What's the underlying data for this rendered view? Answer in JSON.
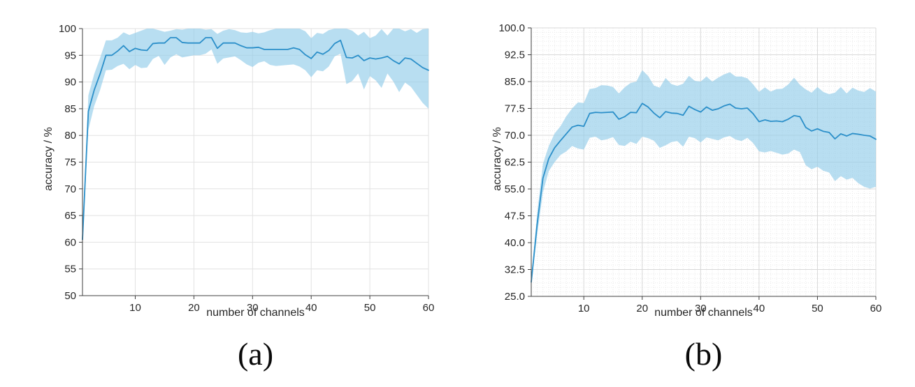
{
  "figure": {
    "background": "#ffffff",
    "description": "Two line charts with shaded confidence bands showing classification accuracy versus number of channels"
  },
  "chart_data": [
    {
      "id": "a",
      "type": "line",
      "caption": "(a)",
      "title": "",
      "xlabel": "number of channels",
      "ylabel": "accuracy / %",
      "xlim": [
        1,
        60
      ],
      "ylim": [
        50,
        100
      ],
      "xticks": [
        10,
        20,
        30,
        40,
        50,
        60
      ],
      "xtick_labels": [
        "10",
        "20",
        "30",
        "40",
        "50",
        "60"
      ],
      "yticks": [
        50,
        55,
        60,
        65,
        70,
        75,
        80,
        85,
        90,
        95,
        100
      ],
      "ytick_labels": [
        "50",
        "55",
        "60",
        "65",
        "70",
        "75",
        "80",
        "85",
        "90",
        "95",
        "100"
      ],
      "grid": {
        "major": true,
        "minor": false,
        "minor_x_step": 1,
        "minor_y_step": 1.25
      },
      "legend": "none",
      "x": [
        1,
        2,
        3,
        4,
        5,
        6,
        7,
        8,
        9,
        10,
        11,
        12,
        13,
        14,
        15,
        16,
        17,
        18,
        19,
        20,
        21,
        22,
        23,
        24,
        25,
        26,
        27,
        28,
        29,
        30,
        31,
        32,
        33,
        34,
        35,
        36,
        37,
        38,
        39,
        40,
        41,
        42,
        43,
        44,
        45,
        46,
        47,
        48,
        49,
        50,
        51,
        52,
        53,
        54,
        55,
        56,
        57,
        58,
        59,
        60
      ],
      "series": [
        {
          "name": "mean accuracy",
          "values": [
            60.5,
            84.5,
            88.5,
            91.5,
            95.0,
            95.0,
            95.8,
            96.8,
            95.7,
            96.3,
            96.0,
            95.9,
            97.2,
            97.3,
            97.3,
            98.3,
            98.3,
            97.4,
            97.3,
            97.3,
            97.3,
            98.3,
            98.3,
            96.3,
            97.3,
            97.3,
            97.3,
            96.8,
            96.4,
            96.4,
            96.5,
            96.1,
            96.1,
            96.1,
            96.1,
            96.1,
            96.4,
            96.1,
            95.1,
            94.4,
            95.6,
            95.2,
            95.9,
            97.2,
            97.8,
            94.6,
            94.5,
            95.0,
            94.0,
            94.5,
            94.3,
            94.5,
            94.8,
            94.0,
            93.4,
            94.5,
            94.3,
            93.5,
            92.7,
            92.2
          ]
        },
        {
          "name": "band lower bound",
          "values": [
            59.5,
            81.0,
            85.5,
            88.5,
            92.2,
            92.3,
            93.0,
            93.4,
            92.4,
            93.2,
            92.6,
            92.7,
            94.3,
            94.9,
            93.2,
            94.6,
            95.2,
            94.6,
            94.8,
            95.0,
            95.0,
            95.3,
            96.1,
            93.4,
            94.4,
            94.6,
            94.8,
            94.1,
            93.3,
            92.8,
            93.6,
            93.9,
            93.2,
            93.0,
            93.1,
            93.2,
            93.3,
            92.9,
            92.2,
            90.9,
            92.2,
            92.0,
            92.9,
            94.8,
            95.3,
            89.6,
            90.2,
            91.6,
            88.6,
            91.1,
            90.3,
            88.9,
            91.6,
            90.1,
            88.1,
            89.9,
            89.1,
            87.6,
            86.1,
            85.0
          ]
        },
        {
          "name": "band upper bound",
          "values": [
            61.5,
            87.5,
            91.5,
            94.5,
            97.8,
            97.8,
            98.3,
            99.3,
            98.8,
            99.2,
            99.6,
            100,
            100,
            99.7,
            99.4,
            99.6,
            99.9,
            99.8,
            100,
            100,
            100,
            99.8,
            99.9,
            99.0,
            99.6,
            99.9,
            99.7,
            99.3,
            99.2,
            99.4,
            99.1,
            99.3,
            99.7,
            100,
            100,
            100,
            100,
            100,
            99.5,
            98.2,
            99.2,
            99.0,
            99.7,
            100,
            100,
            100,
            99.6,
            98.7,
            99.4,
            98.2,
            98.7,
            99.9,
            98.7,
            100,
            100,
            99.5,
            99.9,
            99.2,
            99.9,
            100
          ]
        }
      ],
      "colors": {
        "line": "#2b8fc9",
        "band": "#92cde9",
        "grid": "#e2e2e2",
        "minor_grid": "#ececec",
        "axis": "#3f3f3f",
        "text": "#262626"
      }
    },
    {
      "id": "b",
      "type": "line",
      "caption": "(b)",
      "title": "",
      "xlabel": "number of channels",
      "ylabel": "accuracy / %",
      "xlim": [
        1,
        60
      ],
      "ylim": [
        25,
        100
      ],
      "xticks": [
        10,
        20,
        30,
        40,
        50,
        60
      ],
      "xtick_labels": [
        "10",
        "20",
        "30",
        "40",
        "50",
        "60"
      ],
      "yticks": [
        25,
        32.5,
        40,
        47.5,
        55,
        62.5,
        70,
        77.5,
        85,
        92.5,
        100
      ],
      "ytick_labels": [
        "25.0",
        "32.5",
        "40.0",
        "47.5",
        "55.0",
        "62.5",
        "70.0",
        "77.5",
        "85.0",
        "92.5",
        "100.0"
      ],
      "grid": {
        "major": true,
        "minor": true,
        "minor_x_step": 1,
        "minor_y_step": 1.25
      },
      "legend": "none",
      "x": [
        1,
        2,
        3,
        4,
        5,
        6,
        7,
        8,
        9,
        10,
        11,
        12,
        13,
        14,
        15,
        16,
        17,
        18,
        19,
        20,
        21,
        22,
        23,
        24,
        25,
        26,
        27,
        28,
        29,
        30,
        31,
        32,
        33,
        34,
        35,
        36,
        37,
        38,
        39,
        40,
        41,
        42,
        43,
        44,
        45,
        46,
        47,
        48,
        49,
        50,
        51,
        52,
        53,
        54,
        55,
        56,
        57,
        58,
        59,
        60
      ],
      "series": [
        {
          "name": "mean accuracy",
          "values": [
            29.0,
            45.0,
            58.0,
            63.5,
            66.5,
            68.5,
            70.4,
            72.3,
            72.8,
            72.5,
            76.1,
            76.4,
            76.3,
            76.4,
            76.5,
            74.5,
            75.2,
            76.4,
            76.3,
            78.9,
            77.9,
            76.2,
            74.9,
            76.6,
            76.2,
            76.1,
            75.6,
            78.1,
            77.2,
            76.5,
            77.9,
            77.0,
            77.4,
            78.2,
            78.7,
            77.6,
            77.4,
            77.6,
            76.0,
            73.8,
            74.3,
            73.9,
            74.0,
            73.8,
            74.5,
            75.5,
            75.2,
            72.2,
            71.2,
            71.8,
            71.1,
            70.8,
            69.0,
            70.4,
            69.8,
            70.5,
            70.3,
            70.0,
            69.8,
            68.9
          ]
        },
        {
          "name": "band lower bound",
          "values": [
            28.0,
            42.0,
            54.0,
            60.0,
            62.5,
            64.5,
            65.5,
            67.0,
            66.3,
            66.0,
            69.3,
            69.6,
            68.6,
            68.9,
            69.5,
            67.3,
            67.0,
            68.2,
            67.6,
            69.6,
            69.2,
            68.5,
            66.5,
            67.2,
            68.1,
            68.4,
            66.8,
            69.6,
            69.2,
            68.0,
            69.4,
            69.0,
            68.6,
            69.4,
            69.8,
            68.8,
            68.4,
            69.3,
            67.8,
            65.5,
            65.2,
            65.6,
            65.1,
            64.6,
            64.9,
            66.0,
            65.3,
            61.6,
            60.5,
            61.2,
            60.1,
            59.6,
            57.2,
            58.6,
            57.6,
            58.1,
            56.6,
            55.6,
            55.1,
            55.6
          ]
        },
        {
          "name": "band upper bound",
          "values": [
            30.0,
            48.0,
            62.0,
            67.0,
            70.5,
            72.5,
            75.3,
            77.5,
            79.2,
            79.0,
            82.9,
            83.2,
            84.0,
            83.9,
            83.5,
            81.7,
            83.4,
            84.6,
            85.0,
            88.2,
            86.6,
            83.9,
            83.3,
            86.0,
            84.3,
            83.8,
            84.4,
            86.6,
            85.2,
            85.0,
            86.4,
            85.0,
            86.1,
            87.0,
            87.6,
            86.4,
            86.4,
            85.9,
            84.2,
            82.1,
            83.4,
            82.2,
            82.9,
            83.0,
            84.2,
            86.1,
            84.1,
            82.8,
            81.9,
            83.5,
            82.1,
            81.5,
            81.9,
            83.5,
            81.7,
            83.3,
            82.5,
            82.1,
            83.2,
            82.2
          ]
        }
      ],
      "colors": {
        "line": "#2b8fc9",
        "band": "#92cde9",
        "grid": "#d9d9d9",
        "minor_grid": "#e9e9e9",
        "axis": "#3f3f3f",
        "text": "#262626"
      }
    }
  ]
}
